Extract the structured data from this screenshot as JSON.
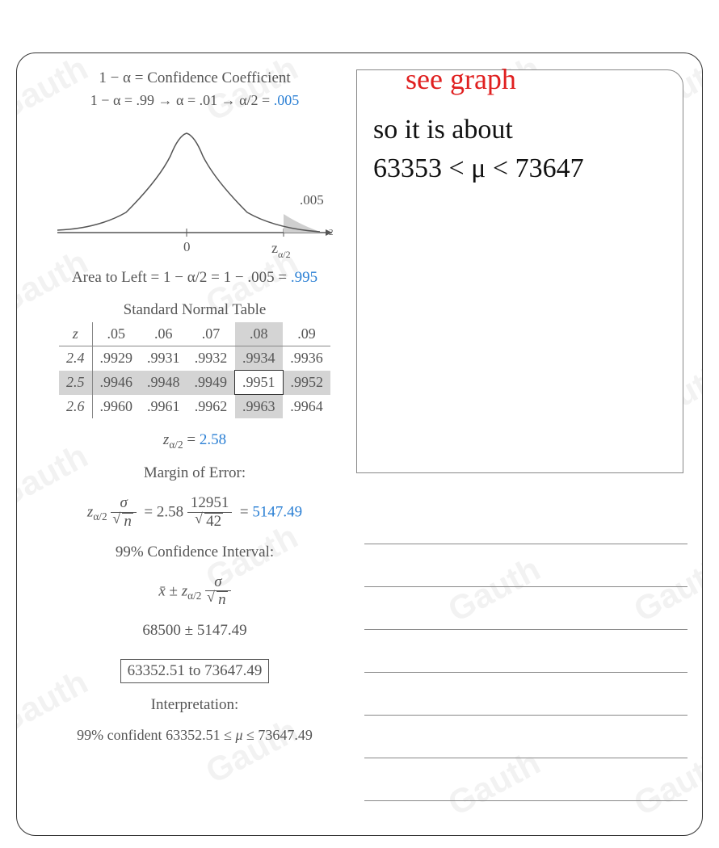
{
  "header": {
    "line1_pre": "1 − α = ",
    "line1_post": "Confidence Coefficient",
    "line2_a": "1 − α = .99",
    "line2_b": " → α = .01 → α/2 = ",
    "line2_val": ".005"
  },
  "graph": {
    "tail_label": ".005",
    "center_label": "0",
    "z_label": "z",
    "z_sub": "α/2",
    "axis_color": "#555555",
    "curve_color": "#555555",
    "fill_color": "#cfcfcf"
  },
  "area": {
    "pre": "Area to Left = 1 − α/2 = 1 − .005 = ",
    "val": ".995"
  },
  "table": {
    "title": "Standard Normal Table",
    "head": [
      "z",
      ".05",
      ".06",
      ".07",
      ".08",
      ".09"
    ],
    "rows": [
      [
        "2.4",
        ".9929",
        ".9931",
        ".9932",
        ".9934",
        ".9936"
      ],
      [
        "2.5",
        ".9946",
        ".9948",
        ".9949",
        ".9951",
        ".9952"
      ],
      [
        "2.6",
        ".9960",
        ".9961",
        ".9962",
        ".9963",
        ".9964"
      ]
    ],
    "hi_row": 1,
    "hi_col": 4,
    "hi_cell_row": 1,
    "hi_cell_col": 4
  },
  "zline": {
    "pre": "z",
    "sub": "α/2",
    "mid": " = ",
    "val": "2.58"
  },
  "moe_title": "Margin of Error:",
  "moe": {
    "z_pre": "z",
    "z_sub": "α/2",
    "sigma": "σ",
    "sqrt_n": "n",
    "eq1_val": "2.58",
    "eq1_num": "12951",
    "eq1_den": "42",
    "result": "5147.49"
  },
  "ci_title": "99% Confidence Interval:",
  "ci_formula": {
    "xbar": "x̄",
    "pm": " ± ",
    "zpre": "z",
    "zsub": "α/2",
    "sigma": "σ",
    "n": "n"
  },
  "ci_numeric": "68500 ± 5147.49",
  "ci_range": "63352.51 to 73647.49",
  "interp_title": "Interpretation:",
  "interp_text_a": "99% confident 63352.51 ≤ ",
  "interp_mu": "μ",
  "interp_text_b": " ≤ 73647.49",
  "handwriting": {
    "red": "see graph",
    "black_l1": "so it is about",
    "black_l2": "63353 < μ < 73647"
  },
  "watermark": "Gauth",
  "ruled_count": 8
}
